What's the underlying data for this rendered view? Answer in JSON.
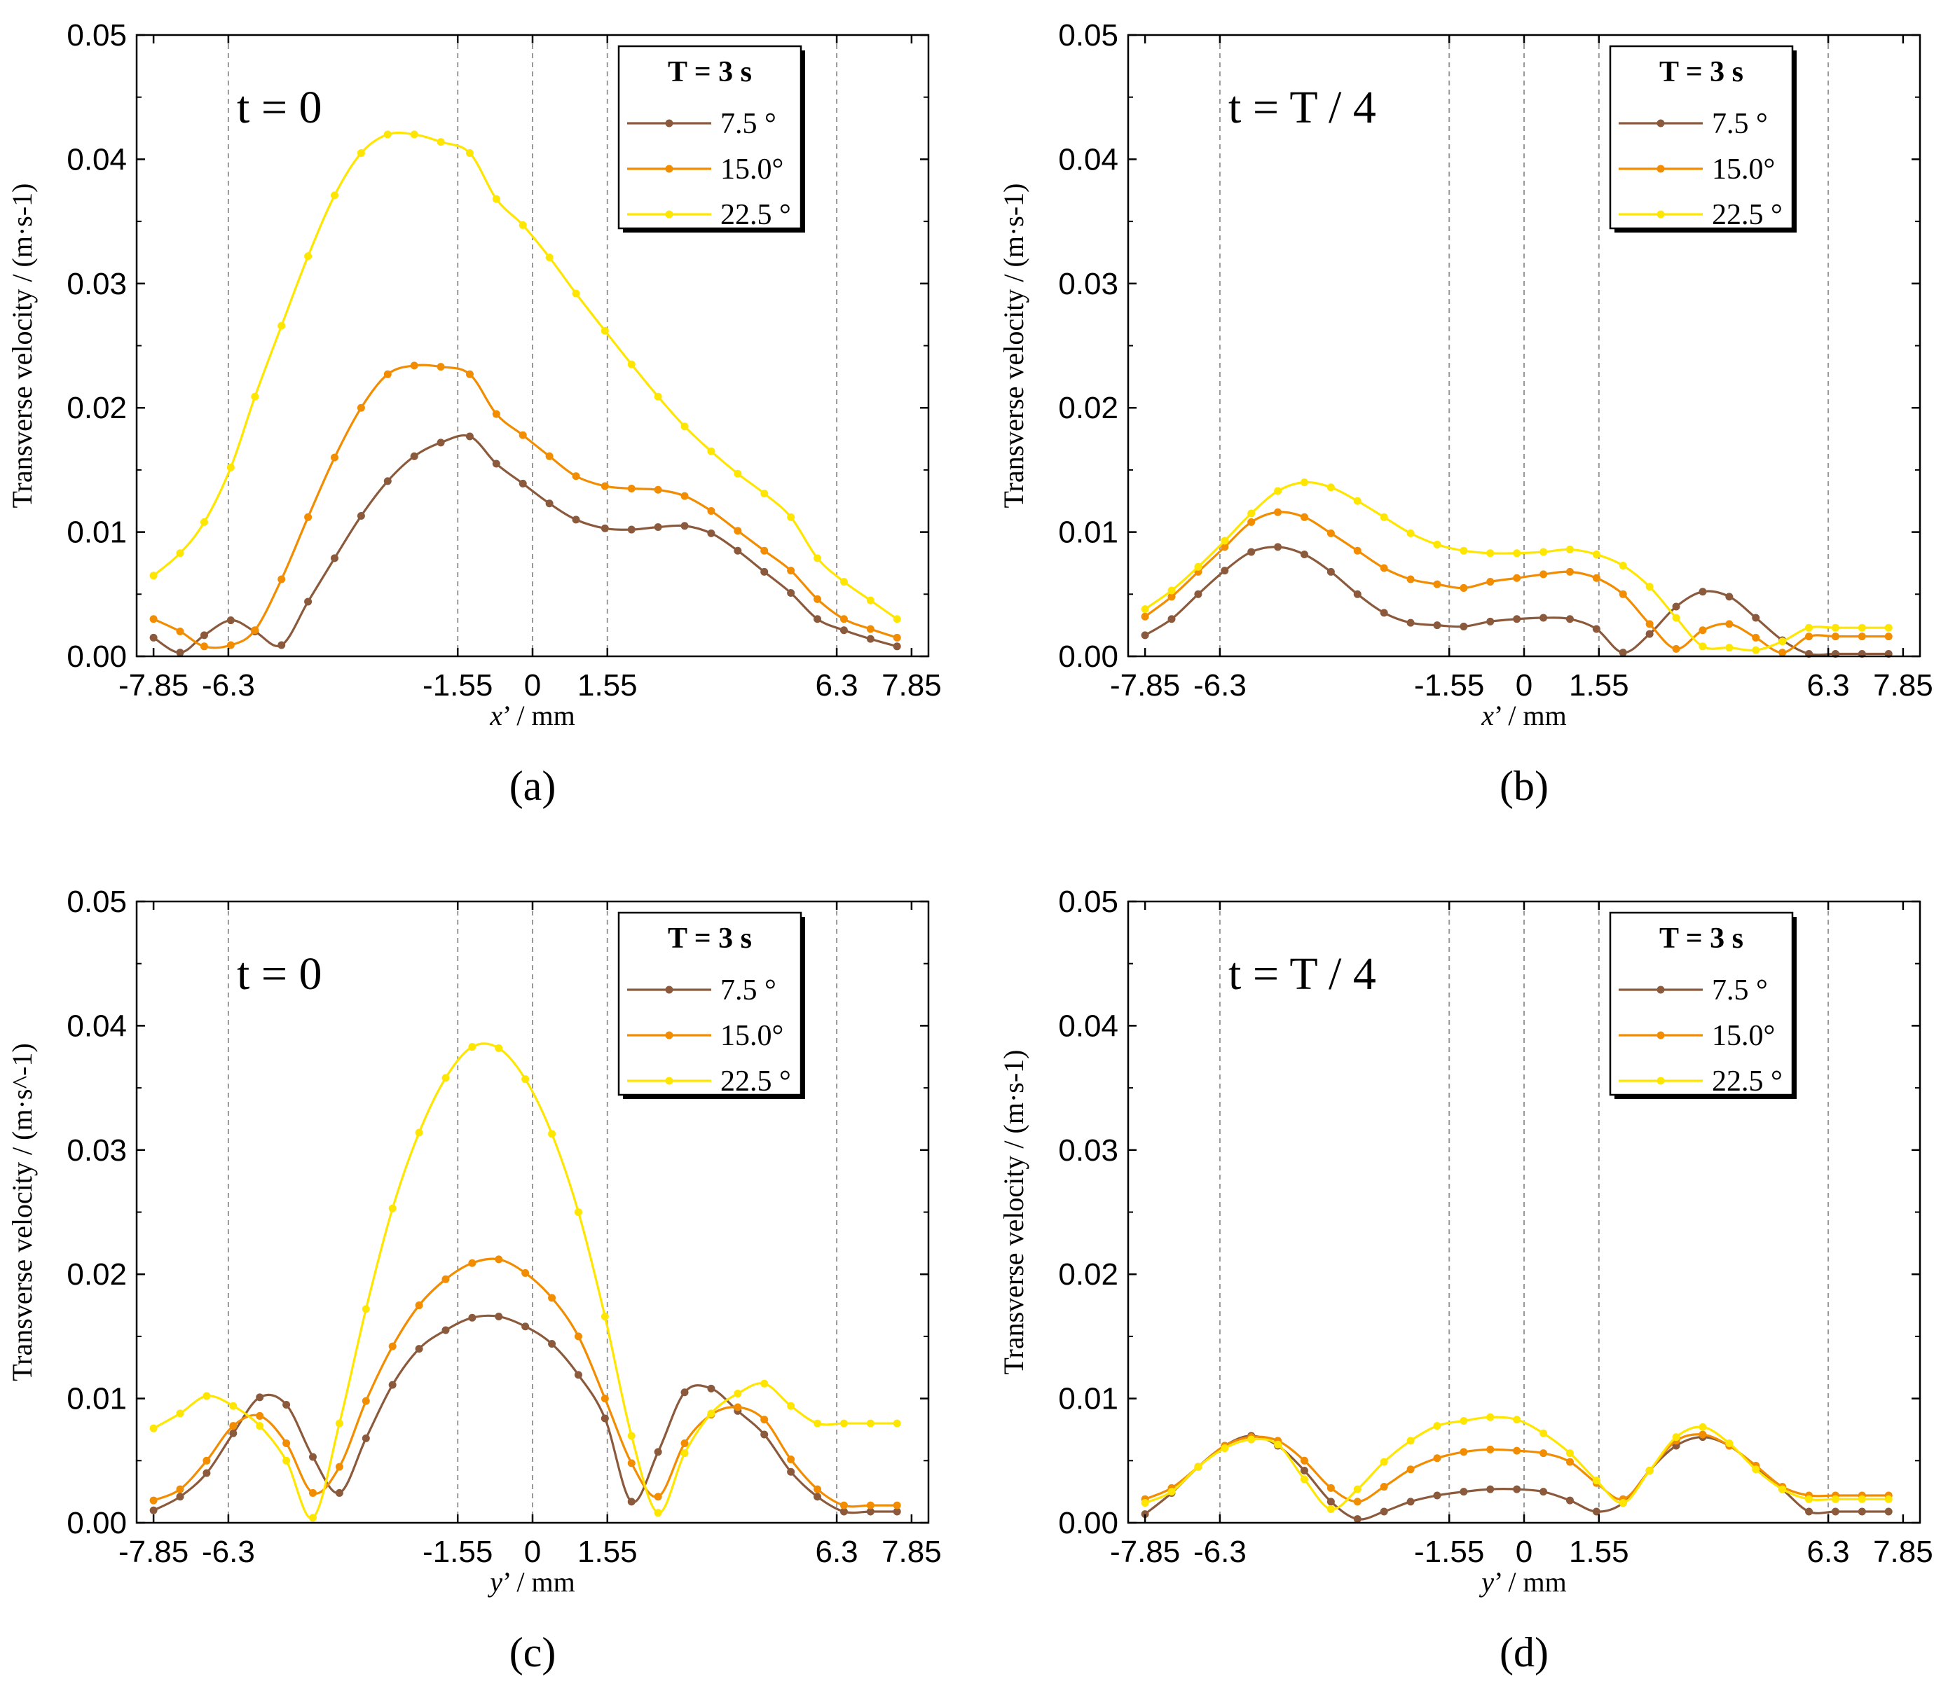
{
  "chart_data": [
    {
      "type": "line",
      "panel_label": "(a)",
      "annotation": "t = 0",
      "xlabel": "x’ / mm",
      "ylabel": "Transverse velocity / (m·s-1)",
      "ylim": [
        0,
        0.05
      ],
      "xlim": [
        -8.2,
        8.2
      ],
      "xticks": [
        -7.85,
        -6.3,
        -1.55,
        0,
        1.55,
        6.3,
        7.85
      ],
      "xtick_labels": [
        "-7.85",
        "-6.3",
        "-1.55",
        "0",
        "1.55",
        "6.3",
        "7.85"
      ],
      "yticks": [
        0,
        0.01,
        0.02,
        0.03,
        0.04,
        0.05
      ],
      "ytick_labels": [
        "0.00",
        "0.01",
        "0.02",
        "0.03",
        "0.04",
        "0.05"
      ],
      "vlines": [
        -6.3,
        -1.55,
        0,
        1.55,
        6.3
      ],
      "legend_title": "T = 3 s",
      "x": [
        -7.85,
        -7.3,
        -6.8,
        -6.25,
        -5.75,
        -5.2,
        -4.65,
        -4.1,
        -3.55,
        -3.0,
        -2.45,
        -1.9,
        -1.3,
        -0.75,
        -0.2,
        0.35,
        0.9,
        1.5,
        2.05,
        2.6,
        3.15,
        3.7,
        4.25,
        4.8,
        5.35,
        5.9,
        6.45,
        7.0,
        7.55
      ],
      "series": [
        {
          "name": "7.5 °",
          "values": [
            0.0015,
            0.0003,
            0.0017,
            0.0029,
            0.002,
            0.0009,
            0.0044,
            0.0079,
            0.0113,
            0.0141,
            0.0161,
            0.0172,
            0.0177,
            0.0155,
            0.0139,
            0.0123,
            0.011,
            0.0103,
            0.0102,
            0.0104,
            0.0105,
            0.0099,
            0.0085,
            0.0068,
            0.0051,
            0.003,
            0.0021,
            0.0014,
            0.0008
          ]
        },
        {
          "name": "15.0°",
          "values": [
            0.003,
            0.002,
            0.0008,
            0.0009,
            0.0021,
            0.0062,
            0.0112,
            0.016,
            0.02,
            0.0227,
            0.0234,
            0.0233,
            0.0227,
            0.0195,
            0.0178,
            0.0161,
            0.0145,
            0.0137,
            0.0135,
            0.0134,
            0.0129,
            0.0117,
            0.0101,
            0.0085,
            0.0069,
            0.0046,
            0.003,
            0.0022,
            0.0015
          ]
        },
        {
          "name": "22.5 °",
          "values": [
            0.0065,
            0.0083,
            0.0108,
            0.0152,
            0.0209,
            0.0266,
            0.0322,
            0.0371,
            0.0405,
            0.042,
            0.042,
            0.0414,
            0.0405,
            0.0368,
            0.0347,
            0.0321,
            0.0292,
            0.0262,
            0.0235,
            0.0209,
            0.0185,
            0.0165,
            0.0147,
            0.0131,
            0.0112,
            0.0079,
            0.006,
            0.0045,
            0.003
          ]
        }
      ]
    },
    {
      "type": "line",
      "panel_label": "(b)",
      "annotation": "t = T / 4",
      "xlabel": "x’ / mm",
      "ylabel": "Transverse velocity / (m·s-1)",
      "ylim": [
        0,
        0.05
      ],
      "xlim": [
        -8.2,
        8.2
      ],
      "xticks": [
        -7.85,
        -6.3,
        -1.55,
        0,
        1.55,
        6.3,
        7.85
      ],
      "xtick_labels": [
        "-7.85",
        "-6.3",
        "-1.55",
        "0",
        "1.55",
        "6.3",
        "7.85"
      ],
      "yticks": [
        0,
        0.01,
        0.02,
        0.03,
        0.04,
        0.05
      ],
      "ytick_labels": [
        "0.00",
        "0.01",
        "0.02",
        "0.03",
        "0.04",
        "0.05"
      ],
      "vlines": [
        -6.3,
        -1.55,
        0,
        1.55,
        6.3
      ],
      "legend_title": "T = 3 s",
      "x": [
        -7.85,
        -7.3,
        -6.75,
        -6.2,
        -5.65,
        -5.1,
        -4.55,
        -4.0,
        -3.45,
        -2.9,
        -2.35,
        -1.8,
        -1.25,
        -0.7,
        -0.15,
        0.4,
        0.95,
        1.5,
        2.05,
        2.6,
        3.15,
        3.7,
        4.25,
        4.8,
        5.35,
        5.9,
        6.45,
        7.0,
        7.55
      ],
      "series": [
        {
          "name": "7.5 °",
          "values": [
            0.0017,
            0.003,
            0.005,
            0.0069,
            0.0084,
            0.0088,
            0.0082,
            0.0068,
            0.005,
            0.0035,
            0.0027,
            0.0025,
            0.0024,
            0.0028,
            0.003,
            0.0031,
            0.003,
            0.0022,
            0.0003,
            0.0018,
            0.004,
            0.0052,
            0.0048,
            0.0031,
            0.0013,
            0.0002,
            0.0002,
            0.0002,
            0.0002
          ]
        },
        {
          "name": "15.0°",
          "values": [
            0.0032,
            0.0048,
            0.0068,
            0.0088,
            0.0108,
            0.0116,
            0.0112,
            0.0099,
            0.0085,
            0.0071,
            0.0062,
            0.0058,
            0.0055,
            0.006,
            0.0063,
            0.0066,
            0.0068,
            0.0063,
            0.005,
            0.0026,
            0.0006,
            0.0021,
            0.0026,
            0.0015,
            0.0003,
            0.0016,
            0.0016,
            0.0016,
            0.0016
          ]
        },
        {
          "name": "22.5 °",
          "values": [
            0.0038,
            0.0053,
            0.0072,
            0.0093,
            0.0115,
            0.0133,
            0.014,
            0.0136,
            0.0125,
            0.0112,
            0.0099,
            0.009,
            0.0085,
            0.0083,
            0.0083,
            0.0084,
            0.0086,
            0.0082,
            0.0073,
            0.0056,
            0.0031,
            0.0008,
            0.0007,
            0.0005,
            0.0012,
            0.0023,
            0.0023,
            0.0023,
            0.0023
          ]
        }
      ]
    },
    {
      "type": "line",
      "panel_label": "(c)",
      "annotation": "t = 0",
      "xlabel": "y’ / mm",
      "ylabel": "Transverse velocity / (m·s^-1)",
      "ylim": [
        0,
        0.05
      ],
      "xlim": [
        -8.2,
        8.2
      ],
      "xticks": [
        -7.85,
        -6.3,
        -1.55,
        0,
        1.55,
        6.3,
        7.85
      ],
      "xtick_labels": [
        "-7.85",
        "-6.3",
        "-1.55",
        "0",
        "1.55",
        "6.3",
        "7.85"
      ],
      "yticks": [
        0,
        0.01,
        0.02,
        0.03,
        0.04,
        0.05
      ],
      "ytick_labels": [
        "0.00",
        "0.01",
        "0.02",
        "0.03",
        "0.04",
        "0.05"
      ],
      "vlines": [
        -6.3,
        -1.55,
        0,
        1.55,
        6.3
      ],
      "legend_title": "T = 3 s",
      "x": [
        -7.85,
        -7.3,
        -6.75,
        -6.2,
        -5.65,
        -5.1,
        -4.55,
        -4.0,
        -3.45,
        -2.9,
        -2.35,
        -1.8,
        -1.25,
        -0.7,
        -0.15,
        0.4,
        0.95,
        1.5,
        2.05,
        2.6,
        3.15,
        3.7,
        4.25,
        4.8,
        5.35,
        5.9,
        6.45,
        7.0,
        7.55
      ],
      "series": [
        {
          "name": "7.5 °",
          "values": [
            0.001,
            0.0021,
            0.004,
            0.0072,
            0.0101,
            0.0095,
            0.0053,
            0.0024,
            0.0068,
            0.0111,
            0.014,
            0.0155,
            0.0165,
            0.0166,
            0.0158,
            0.0144,
            0.0119,
            0.0084,
            0.0017,
            0.0057,
            0.0105,
            0.0108,
            0.009,
            0.0071,
            0.0041,
            0.0021,
            0.0009,
            0.0009,
            0.0009
          ]
        },
        {
          "name": "15.0°",
          "values": [
            0.0018,
            0.0027,
            0.005,
            0.0078,
            0.0086,
            0.0064,
            0.0024,
            0.0045,
            0.0098,
            0.0142,
            0.0175,
            0.0196,
            0.0209,
            0.0212,
            0.0201,
            0.0181,
            0.015,
            0.01,
            0.0048,
            0.0021,
            0.0064,
            0.0087,
            0.0093,
            0.0083,
            0.0051,
            0.0027,
            0.0014,
            0.0014,
            0.0014
          ]
        },
        {
          "name": "22.5 °",
          "values": [
            0.0076,
            0.0088,
            0.0102,
            0.0094,
            0.0078,
            0.005,
            0.0004,
            0.008,
            0.0172,
            0.0253,
            0.0314,
            0.0358,
            0.0383,
            0.0382,
            0.0357,
            0.0313,
            0.025,
            0.0166,
            0.007,
            0.0008,
            0.0056,
            0.0088,
            0.0104,
            0.0112,
            0.0094,
            0.008,
            0.008,
            0.008,
            0.008
          ]
        }
      ]
    },
    {
      "type": "line",
      "panel_label": "(d)",
      "annotation": "t = T / 4",
      "xlabel": "y’ / mm",
      "ylabel": "Transverse velocity / (m·s-1)",
      "ylim": [
        0,
        0.05
      ],
      "xlim": [
        -8.2,
        8.2
      ],
      "xticks": [
        -7.85,
        -6.3,
        -1.55,
        0,
        1.55,
        6.3,
        7.85
      ],
      "xtick_labels": [
        "-7.85",
        "-6.3",
        "-1.55",
        "0",
        "1.55",
        "6.3",
        "7.85"
      ],
      "yticks": [
        0,
        0.01,
        0.02,
        0.03,
        0.04,
        0.05
      ],
      "ytick_labels": [
        "0.00",
        "0.01",
        "0.02",
        "0.03",
        "0.04",
        "0.05"
      ],
      "vlines": [
        -6.3,
        -1.55,
        0,
        1.55,
        6.3
      ],
      "legend_title": "T = 3 s",
      "x": [
        -7.85,
        -7.3,
        -6.75,
        -6.2,
        -5.65,
        -5.1,
        -4.55,
        -4.0,
        -3.45,
        -2.9,
        -2.35,
        -1.8,
        -1.25,
        -0.7,
        -0.15,
        0.4,
        0.95,
        1.5,
        2.05,
        2.6,
        3.15,
        3.7,
        4.25,
        4.8,
        5.35,
        5.9,
        6.45,
        7.0,
        7.55
      ],
      "series": [
        {
          "name": "7.5 °",
          "values": [
            0.0007,
            0.0024,
            0.0045,
            0.0062,
            0.007,
            0.0062,
            0.0042,
            0.0017,
            0.0003,
            0.0009,
            0.0017,
            0.0022,
            0.0025,
            0.0027,
            0.0027,
            0.0025,
            0.0018,
            0.0009,
            0.0016,
            0.0042,
            0.0062,
            0.0069,
            0.0062,
            0.0045,
            0.0027,
            0.0009,
            0.0009,
            0.0009,
            0.0009
          ]
        },
        {
          "name": "15.0°",
          "values": [
            0.0019,
            0.0028,
            0.0045,
            0.0062,
            0.0069,
            0.0066,
            0.005,
            0.0028,
            0.0017,
            0.0029,
            0.0043,
            0.0052,
            0.0057,
            0.0059,
            0.0058,
            0.0056,
            0.0049,
            0.0032,
            0.0019,
            0.0042,
            0.0066,
            0.0071,
            0.0062,
            0.0046,
            0.0029,
            0.0022,
            0.0022,
            0.0022,
            0.0022
          ]
        },
        {
          "name": "22.5 °",
          "values": [
            0.0016,
            0.0025,
            0.0045,
            0.006,
            0.0067,
            0.0063,
            0.0035,
            0.0011,
            0.0027,
            0.0049,
            0.0066,
            0.0078,
            0.0082,
            0.0085,
            0.0083,
            0.0072,
            0.0056,
            0.0034,
            0.0016,
            0.0042,
            0.0069,
            0.0077,
            0.0064,
            0.0043,
            0.0027,
            0.0019,
            0.0019,
            0.0019,
            0.0019
          ]
        }
      ]
    }
  ],
  "colors": {
    "series_7_5": "#8B5A3C",
    "series_15_0": "#F28C00",
    "series_22_5": "#FFE600",
    "vline": "#999999"
  }
}
